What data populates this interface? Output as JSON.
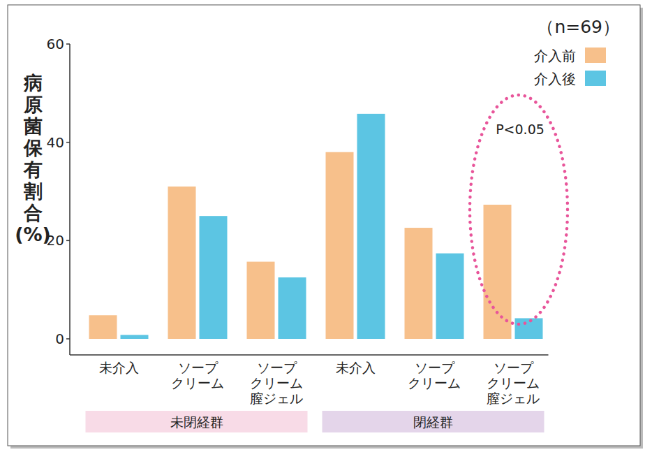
{
  "chart_data": {
    "type": "bar",
    "y_label": "病原菌保有割合(%)",
    "note": "（n=69）",
    "categories": [
      "未介入",
      "ソープ\nクリーム",
      "ソープ\nクリーム\n膣ジェル",
      "未介入",
      "ソープ\nクリーム",
      "ソープ\nクリーム\n膣ジェル"
    ],
    "groups": [
      {
        "label": "未閉経群",
        "count": 3,
        "color": "#f8dbe7"
      },
      {
        "label": "閉経群",
        "count": 3,
        "color": "#e4d5ea"
      }
    ],
    "series": [
      {
        "name": "介入前",
        "color": "#f7c08b",
        "values": [
          4.8,
          31,
          15.7,
          38,
          22.6,
          27.3
        ]
      },
      {
        "name": "介入後",
        "color": "#5cc5e3",
        "values": [
          0.8,
          25,
          12.5,
          45.8,
          17.4,
          4.2
        ]
      }
    ],
    "annotations": [
      {
        "text": "P<0.05",
        "category": 5,
        "color": "#e8559a"
      }
    ],
    "ylim": [
      0,
      60
    ],
    "yticks": [
      0,
      20,
      40,
      60
    ],
    "legend": "top-right",
    "grid": false
  }
}
